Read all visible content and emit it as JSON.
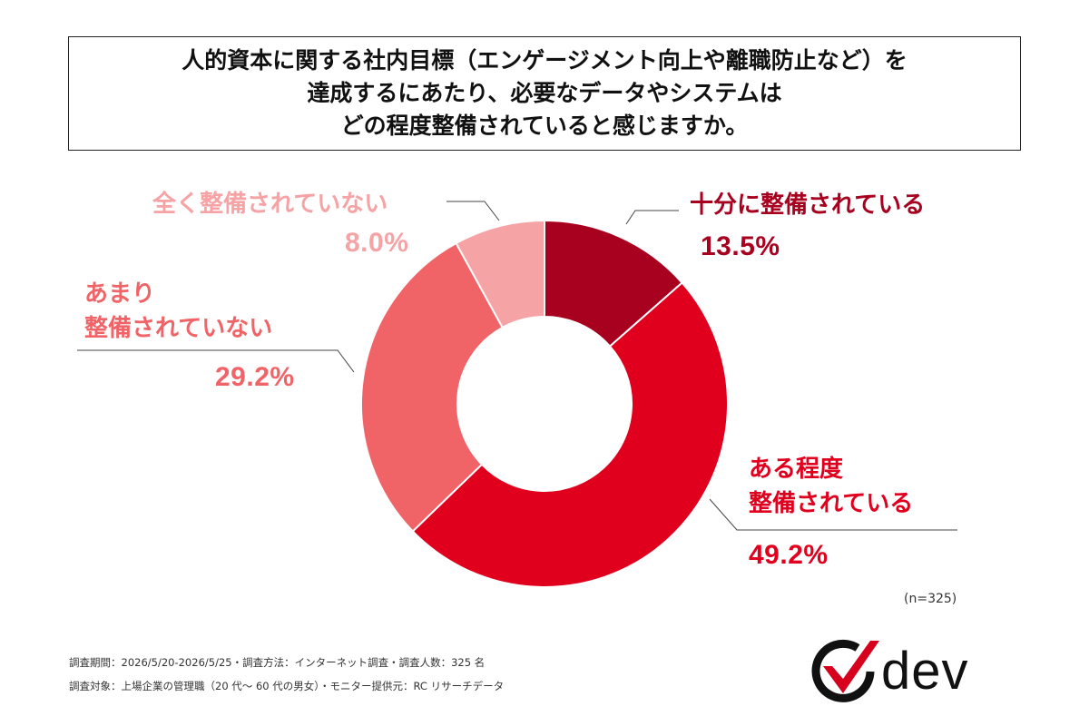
{
  "title_lines": [
    "人的資本に関する社内目標（エンゲージメント向上や離職防止など）を",
    "達成するにあたり、必要なデータやシステムは",
    "どの程度整備されていると感じますか。"
  ],
  "chart_data": {
    "type": "pie",
    "donut": true,
    "total_n": "(n=325)",
    "slices": [
      {
        "label": "十分に整備されている",
        "label_lines": [
          "十分に整備されている"
        ],
        "value": 13.5,
        "display": "13.5%",
        "color": "#a8001f"
      },
      {
        "label": "ある程度整備されている",
        "label_lines": [
          "ある程度",
          "整備されている"
        ],
        "value": 49.2,
        "display": "49.2%",
        "color": "#e0001e"
      },
      {
        "label": "あまり整備されていない",
        "label_lines": [
          "あまり",
          "整備されていない"
        ],
        "value": 29.2,
        "display": "29.2%",
        "color": "#f06468"
      },
      {
        "label": "全く整備されていない",
        "label_lines": [
          "全く整備されていない"
        ],
        "value": 8.0,
        "display": "8.0%",
        "color": "#f6a3a6"
      }
    ]
  },
  "footer": {
    "line1": "調査期間：2026/5/20-2026/5/25・調査方法：インターネット調査・調査人数：325 名",
    "line2": "調査対象：上場企業の管理職（20 代〜 60 代の男女）・モニター提供元：RC リサーチデータ"
  },
  "logo": {
    "text": "dev",
    "icon": "dev-logo-mark-icon"
  }
}
